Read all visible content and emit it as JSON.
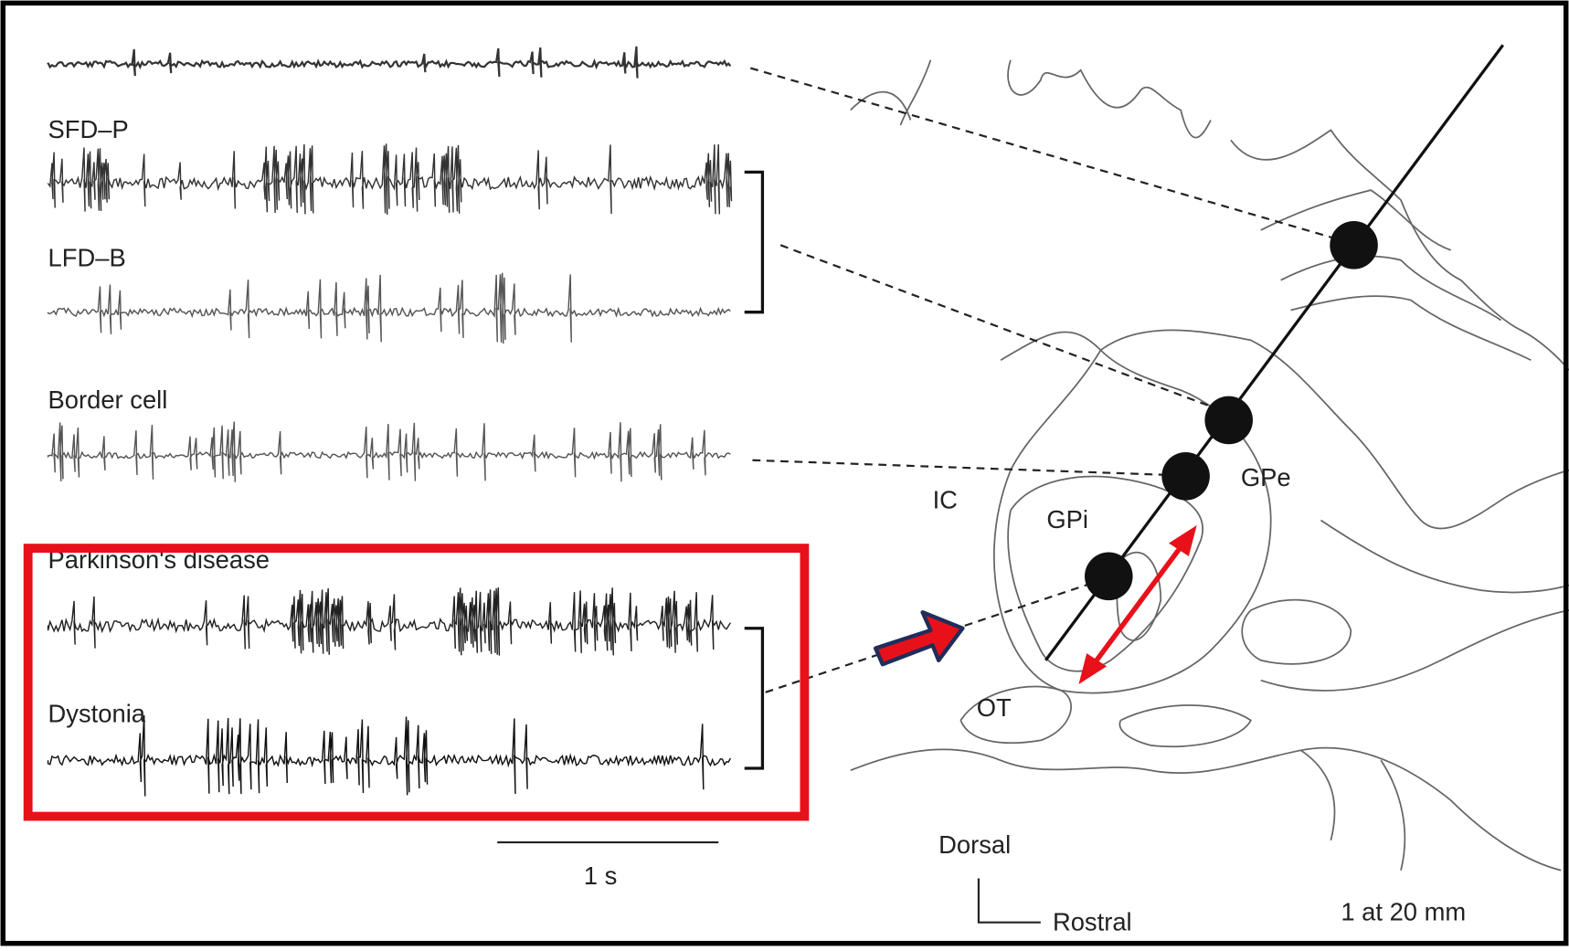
{
  "trace_labels": [
    "SFD–P",
    "LFD–B",
    "Border  cell",
    "Parkinson's disease",
    "Dystonia"
  ],
  "scale_bar": "1 s",
  "regions": {
    "ic": "IC",
    "gpi": "GPi",
    "gpe": "GPe",
    "ot": "OT"
  },
  "orientation": {
    "dorsal": "Dorsal",
    "rostral": "Rostral"
  },
  "section_label": "1 at 20 mm"
}
